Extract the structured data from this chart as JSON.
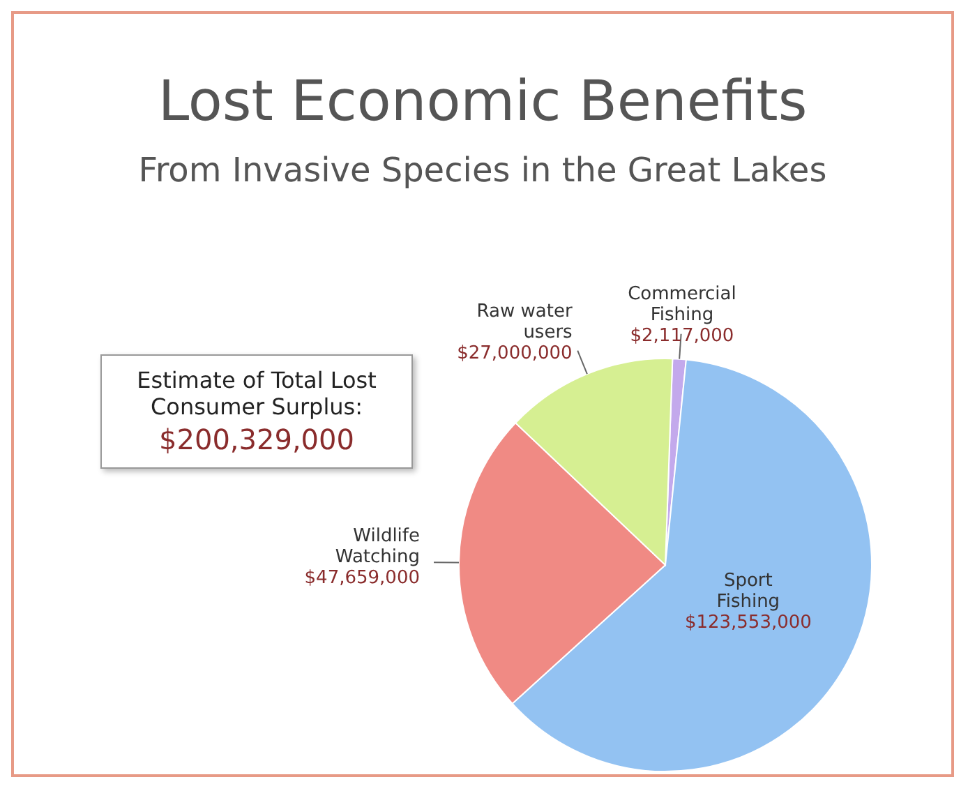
{
  "chart_data": {
    "type": "pie",
    "title": "Lost Economic Benefits",
    "subtitle": "From Invasive Species in the Great Lakes",
    "categories": [
      "Commercial Fishing",
      "Sport Fishing",
      "Wildlife Watching",
      "Raw water users"
    ],
    "values": [
      2117000,
      123553000,
      47659000,
      27000000
    ],
    "value_labels": [
      "$2,117,000",
      "$123,553,000",
      "$47,659,000",
      "$27,000,000"
    ],
    "colors": [
      "#c3a9ec",
      "#93c2f2",
      "#f08a84",
      "#d6ef92"
    ],
    "annotations": [
      "Estimate of Total Lost Consumer Surplus:",
      "$200,329,000"
    ],
    "legend": false
  }
}
